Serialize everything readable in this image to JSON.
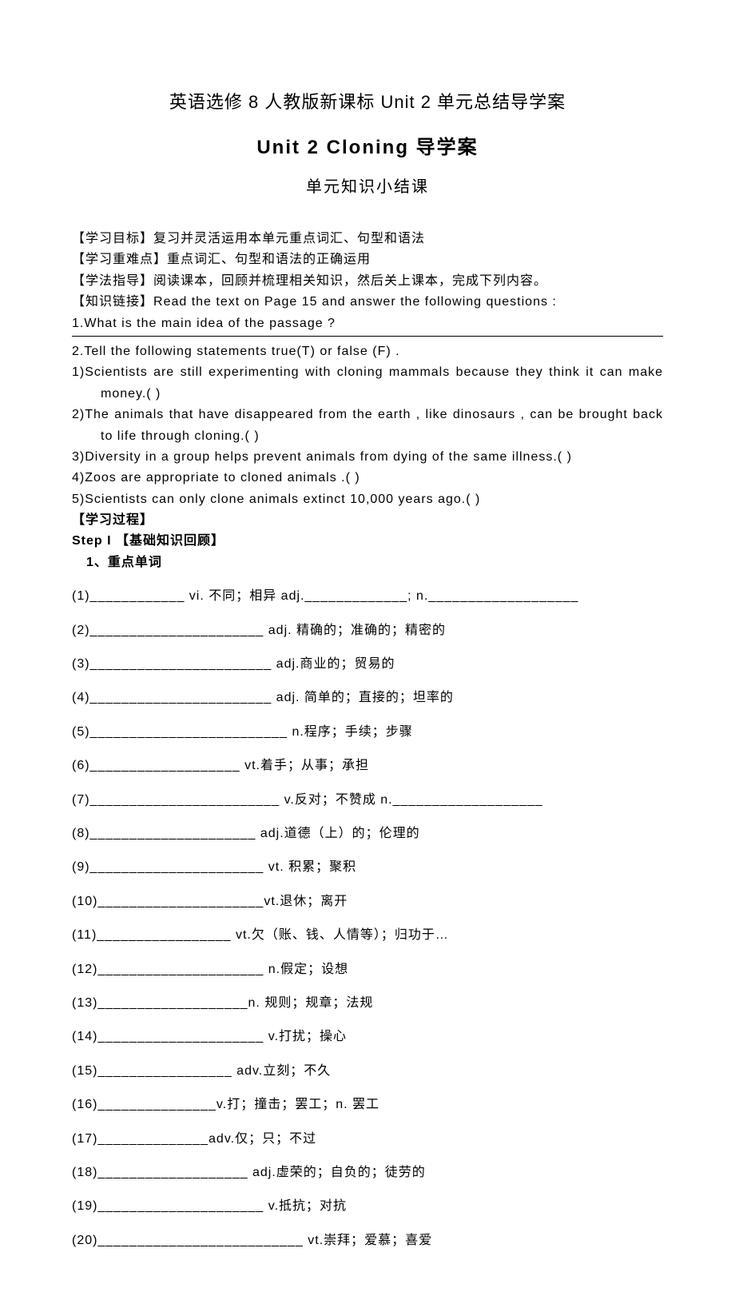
{
  "title1": "英语选修 8 人教版新课标 Unit 2 单元总结导学案",
  "title2": "Unit   2     Cloning   导学案",
  "title3": "单元知识小结课",
  "goals_label": "【学习目标】",
  "goals_text": "复习并灵活运用本单元重点词汇、句型和语法",
  "diff_label": "【学习重难点】",
  "diff_text": "重点词汇、句型和语法的正确运用",
  "method_label": "【学法指导】",
  "method_text": "阅读课本，回顾并梳理相关知识，然后关上课本，完成下列内容。",
  "link_label": "【知识链接】",
  "link_text": "Read the text on Page 15 and answer the following questions :",
  "q1": "1.What is the main idea of the passage ?",
  "q2": "2.Tell the following statements true(T) or false (F) .",
  "tf1": "1)Scientists are still experimenting with cloning mammals because they think it can make money.(    )",
  "tf2": "2)The animals that have disappeared from the earth , like dinosaurs , can be brought back to life through cloning.(    )",
  "tf3": "3)Diversity in a group helps prevent animals from dying of the same illness.(    )",
  "tf4": "4)Zoos are appropriate to cloned animals .(    )",
  "tf5": "5)Scientists can only clone animals extinct 10,000 years ago.(    )",
  "process_label": "【学习过程】",
  "step1": "Step I  【基础知识回顾】",
  "sub1": "1、重点单词",
  "vocab": [
    "(1)____________ vi. 不同；相异  adj._____________; n.___________________",
    "(2)______________________ adj. 精确的；准确的；精密的",
    "(3)_______________________ adj.商业的；贸易的",
    "(4)_______________________ adj. 简单的；直接的；坦率的",
    "(5)_________________________ n.程序；手续；步骤",
    "(6)___________________ vt.着手；从事；承担",
    "(7)________________________ v.反对；不赞成  n.___________________",
    "(8)_____________________ adj.道德（上）的；伦理的",
    "(9)______________________ vt. 积累；聚积",
    "(10)_____________________vt.退休；离开",
    "(11)_________________ vt.欠（账、钱、人情等）；归功于…",
    "(12)_____________________ n.假定；设想",
    "(13)___________________n. 规则；规章；法规",
    "(14)_____________________ v.打扰；操心",
    "(15)_________________ adv.立刻；不久",
    "(16)_______________v.打；撞击；罢工；n. 罢工",
    "(17)______________adv.仅；只；不过",
    "(18)___________________ adj.虚荣的；自负的；徒劳的",
    "(19)_____________________ v.抵抗；对抗",
    "(20)__________________________ vt.崇拜；爱慕；喜爱"
  ]
}
